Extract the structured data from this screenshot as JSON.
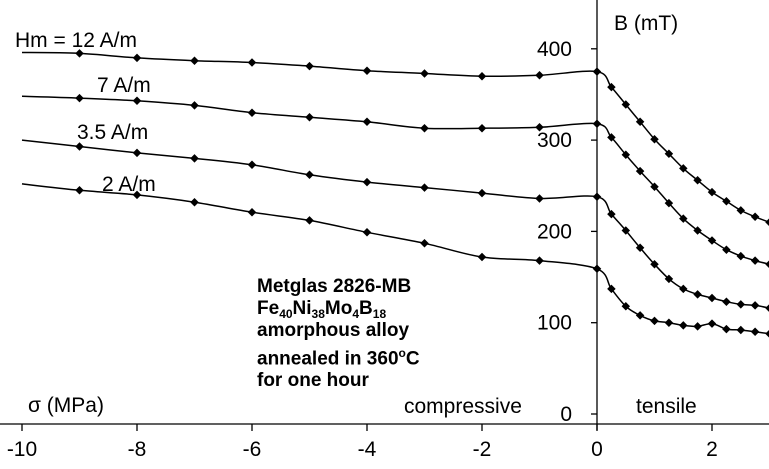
{
  "chart_data": {
    "type": "line",
    "xlabel": "σ (MPa)",
    "ylabel": "B (mT)",
    "xlim": [
      -10,
      3
    ],
    "ylim": [
      0,
      450
    ],
    "x_ticks": [
      "-10",
      "-8",
      "-6",
      "-4",
      "-2",
      "0",
      "2"
    ],
    "y_ticks": [
      "0",
      "100",
      "200",
      "300",
      "400"
    ],
    "region_labels": {
      "compressive": "compressive",
      "tensile": "tensile"
    },
    "grid": false,
    "legend": "none",
    "series": [
      {
        "name": "Hm = 12 A/m",
        "x": [
          -10,
          -9,
          -8,
          -7,
          -6,
          -5,
          -4,
          -3,
          -2,
          -1,
          0,
          0.25,
          0.5,
          0.75,
          1,
          1.25,
          1.5,
          1.75,
          2,
          2.25,
          2.5,
          2.75,
          3
        ],
        "y": [
          396,
          395,
          390,
          387,
          385,
          381,
          376,
          373,
          370,
          371,
          375,
          358,
          339,
          320,
          301,
          285,
          269,
          256,
          243,
          233,
          223,
          216,
          210
        ]
      },
      {
        "name": "7 A/m",
        "x": [
          -10,
          -9,
          -8,
          -7,
          -6,
          -5,
          -4,
          -3,
          -2,
          -1,
          0,
          0.25,
          0.5,
          0.75,
          1,
          1.25,
          1.5,
          1.75,
          2,
          2.25,
          2.5,
          2.75,
          3
        ],
        "y": [
          348,
          346,
          343,
          338,
          330,
          325,
          320,
          313,
          313,
          314,
          318,
          303,
          284,
          266,
          249,
          231,
          214,
          201,
          190,
          180,
          173,
          168,
          164
        ]
      },
      {
        "name": "3.5 A/m",
        "x": [
          -10,
          -9,
          -8,
          -7,
          -6,
          -5,
          -4,
          -3,
          -2,
          -1,
          0,
          0.25,
          0.5,
          0.75,
          1,
          1.25,
          1.5,
          1.75,
          2,
          2.25,
          2.5,
          2.75,
          3
        ],
        "y": [
          300,
          293,
          286,
          280,
          273,
          262,
          254,
          248,
          242,
          236,
          238,
          219,
          201,
          182,
          164,
          148,
          137,
          131,
          127,
          123,
          120,
          119,
          116
        ]
      },
      {
        "name": "2 A/m",
        "x": [
          -10,
          -9,
          -8,
          -7,
          -6,
          -5,
          -4,
          -3,
          -2,
          -1,
          0,
          0.25,
          0.5,
          0.75,
          1,
          1.25,
          1.5,
          1.75,
          2,
          2.25,
          2.5,
          2.75,
          3
        ],
        "y": [
          252,
          245,
          240,
          232,
          221,
          212,
          199,
          187,
          172,
          168,
          159,
          137,
          118,
          108,
          102,
          100,
          97,
          96,
          99,
          93,
          92,
          90,
          88
        ]
      }
    ]
  },
  "annotation": {
    "line1": "Metglas 2826-MB",
    "formula": [
      {
        "t": "Fe"
      },
      {
        "t": "40",
        "sub": true
      },
      {
        "t": "Ni"
      },
      {
        "t": "38",
        "sub": true
      },
      {
        "t": "Mo"
      },
      {
        "t": "4",
        "sub": true
      },
      {
        "t": "B"
      },
      {
        "t": "18",
        "sub": true
      }
    ],
    "line3": "amorphous alloy",
    "line4_pre": "annealed in 360",
    "line4_sup": "o",
    "line4_post": "C",
    "line5": "for one hour"
  }
}
